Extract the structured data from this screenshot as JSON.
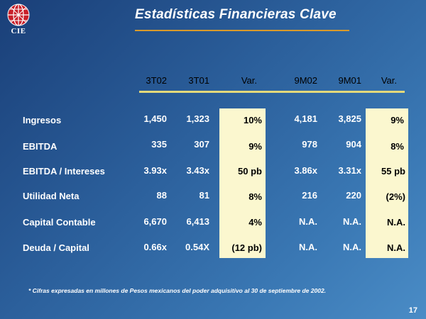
{
  "logo": {
    "text": "CIE"
  },
  "title": "Estadísticas Financieras Clave",
  "columns": [
    "3T02",
    "3T01",
    "Var.",
    "9M02",
    "9M01",
    "Var."
  ],
  "rows": [
    {
      "label": "Ingresos",
      "values": [
        "1,450",
        "1,323",
        "10%",
        "4,181",
        "3,825",
        "9%"
      ]
    },
    {
      "label": "EBITDA",
      "values": [
        "335",
        "307",
        "9%",
        "978",
        "904",
        "8%"
      ]
    },
    {
      "label": "EBITDA / Intereses",
      "values": [
        "3.93x",
        "3.43x",
        "50 pb",
        "3.86x",
        "3.31x",
        "55 pb"
      ]
    },
    {
      "label": "Utilidad Neta",
      "values": [
        "88",
        "81",
        "8%",
        "216",
        "220",
        "(2%)"
      ]
    },
    {
      "label": "Capital Contable",
      "values": [
        "6,670",
        "6,413",
        "4%",
        "N.A.",
        "N.A.",
        "N.A."
      ]
    },
    {
      "label": "Deuda / Capital",
      "values": [
        "0.66x",
        "0.54X",
        "(12 pb)",
        "N.A.",
        "N.A.",
        "N.A."
      ]
    }
  ],
  "footnote": "* Cifras expresadas en millones de Pesos mexicanos del poder adquisitivo al 30 de septiembre de 2002.",
  "page_number": "17",
  "colors": {
    "title_rule": "#d99a2b",
    "header_rule": "#e4d97a",
    "highlight": "#fbf7cf"
  }
}
